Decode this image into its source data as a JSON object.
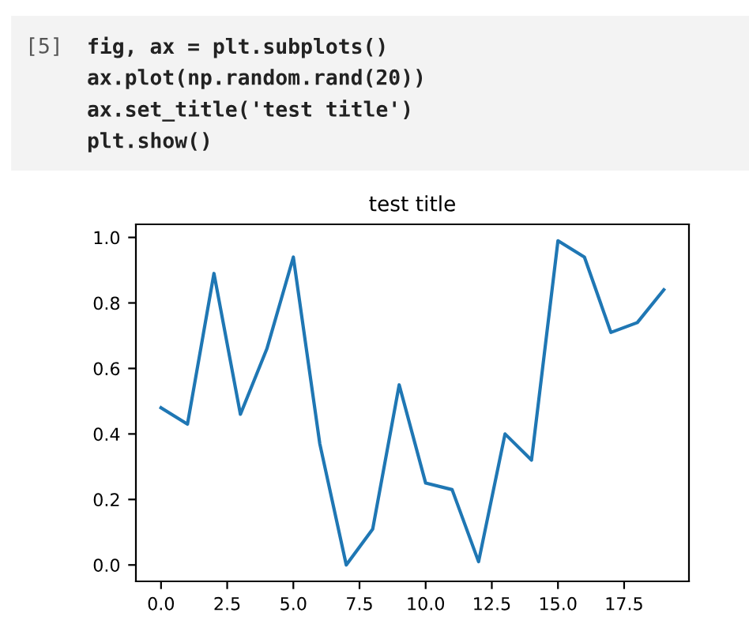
{
  "chart_data": {
    "type": "line",
    "title": "test title",
    "annotations": [
      "[5]",
      "fig, ax = plt.subplots()",
      "ax.plot(np.random.rand(20))",
      "ax.set_title('test title')",
      "plt.show()"
    ],
    "x": [
      0,
      1,
      2,
      3,
      4,
      5,
      6,
      7,
      8,
      9,
      10,
      11,
      12,
      13,
      14,
      15,
      16,
      17,
      18,
      19
    ],
    "series": [
      {
        "color": "#1f77b4",
        "values": [
          0.48,
          0.43,
          0.89,
          0.46,
          0.66,
          0.94,
          0.37,
          0.0,
          0.11,
          0.55,
          0.25,
          0.23,
          0.01,
          0.4,
          0.32,
          0.99,
          0.94,
          0.71,
          0.74,
          0.84
        ]
      }
    ],
    "xlim": [
      -0.95,
      19.95
    ],
    "ylim": [
      -0.05,
      1.04
    ],
    "xticks": [
      {
        "value": 0,
        "label": "0.0"
      },
      {
        "value": 2.5,
        "label": "2.5"
      },
      {
        "value": 5,
        "label": "5.0"
      },
      {
        "value": 7.5,
        "label": "7.5"
      },
      {
        "value": 10,
        "label": "10.0"
      },
      {
        "value": 12.5,
        "label": "12.5"
      },
      {
        "value": 15,
        "label": "15.0"
      },
      {
        "value": 17.5,
        "label": "17.5"
      }
    ],
    "yticks": [
      {
        "value": 0,
        "label": "0.0"
      },
      {
        "value": 0.2,
        "label": "0.2"
      },
      {
        "value": 0.4,
        "label": "0.4"
      },
      {
        "value": 0.6,
        "label": "0.6"
      },
      {
        "value": 0.8,
        "label": "0.8"
      },
      {
        "value": 1.0,
        "label": "1.0"
      }
    ],
    "grid": false
  }
}
